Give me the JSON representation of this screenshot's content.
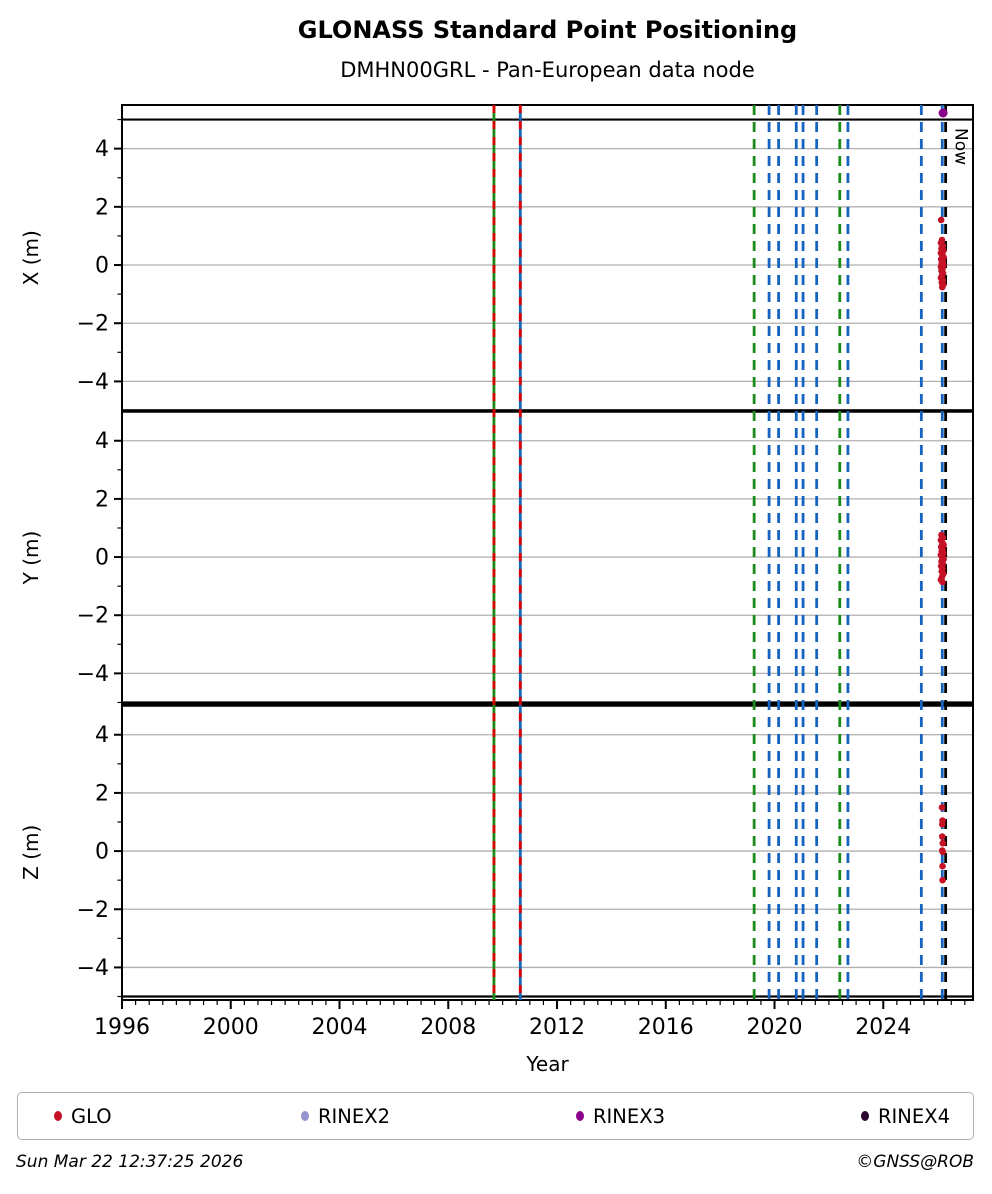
{
  "header": {
    "title": "GLONASS Standard Point Positioning",
    "subtitle": "DMHN00GRL - Pan-European data node"
  },
  "footer": {
    "timestamp": "Sun Mar 22 12:37:25 2026",
    "copyright": "©GNSS@ROB"
  },
  "legend": {
    "items": [
      {
        "label": "GLO",
        "color": "#c51225"
      },
      {
        "label": "RINEX2",
        "color": "#9793ce"
      },
      {
        "label": "RINEX3",
        "color": "#8b008b"
      },
      {
        "label": "RINEX4",
        "color": "#2d072d"
      }
    ]
  },
  "chart_data": {
    "type": "scatter",
    "title": "GLONASS Standard Point Positioning",
    "subtitle": "DMHN00GRL - Pan-European data node",
    "xlabel": "Year",
    "grid": "horizontal-only",
    "grid_color": "#b0b0b0",
    "point_color": "#c51225",
    "x_axis": {
      "lim": [
        1996,
        2027.3
      ],
      "major_ticks": [
        1996,
        2000,
        2004,
        2008,
        2012,
        2016,
        2020,
        2024
      ],
      "minor_step": 0.5
    },
    "now": {
      "year": 2026.22,
      "label": "Now",
      "color": "#000000"
    },
    "threshold_lines": [
      5,
      -5
    ],
    "event_lines": [
      {
        "year": 2009.68,
        "style": "solid",
        "color": "#1a8a1a",
        "overlay": "#dd0000"
      },
      {
        "year": 2010.65,
        "style": "solid",
        "color": "#1565c0",
        "overlay": "#dd0000"
      },
      {
        "year": 2019.25,
        "style": "dashed",
        "color": "#1a8a1a"
      },
      {
        "year": 2019.8,
        "style": "dashed",
        "color": "#1565c0"
      },
      {
        "year": 2020.15,
        "style": "dashed",
        "color": "#1565c0"
      },
      {
        "year": 2020.8,
        "style": "dashed",
        "color": "#1565c0"
      },
      {
        "year": 2021.05,
        "style": "dashed",
        "color": "#1565c0"
      },
      {
        "year": 2021.55,
        "style": "dashed",
        "color": "#1565c0"
      },
      {
        "year": 2022.4,
        "style": "dashed",
        "color": "#1a8a1a"
      },
      {
        "year": 2022.7,
        "style": "dashed",
        "color": "#1565c0"
      },
      {
        "year": 2025.4,
        "style": "dashed",
        "color": "#1565c0"
      },
      {
        "year": 2026.17,
        "style": "dashed",
        "color": "#1565c0"
      }
    ],
    "panels": [
      {
        "ylabel": "X (m)",
        "yticks": [
          4,
          2,
          0,
          -2,
          -4
        ],
        "ylim": [
          -5.0,
          5.5
        ],
        "series": "GLO",
        "points_years": [
          2026.13,
          2026.16,
          2026.12,
          2026.19,
          2026.14,
          2026.21,
          2026.12,
          2026.17,
          2026.22,
          2026.13,
          2026.19,
          2026.15,
          2026.21,
          2026.12,
          2026.18,
          2026.14,
          2026.2,
          2026.16,
          2026.12,
          2026.19,
          2026.15,
          2026.21,
          2026.17
        ],
        "points_values": [
          1.55,
          0.86,
          0.76,
          0.66,
          0.57,
          0.49,
          0.41,
          0.34,
          0.27,
          0.2,
          0.13,
          0.06,
          0.0,
          -0.06,
          -0.13,
          -0.2,
          -0.28,
          -0.36,
          -0.44,
          -0.52,
          -0.6,
          -0.68,
          -0.76
        ],
        "availability_markers": [
          {
            "year": 2026.2,
            "format": "RINEX3",
            "color": "#8b008b"
          }
        ]
      },
      {
        "ylabel": "Y (m)",
        "yticks": [
          4,
          2,
          0,
          -2,
          -4
        ],
        "ylim": [
          -5.07,
          5.04
        ],
        "series": "GLO",
        "points_years": [
          2026.14,
          2026.19,
          2026.12,
          2026.17,
          2026.22,
          2026.13,
          2026.18,
          2026.15,
          2026.21,
          2026.12,
          2026.17,
          2026.22,
          2026.14,
          2026.19,
          2026.13,
          2026.18,
          2026.15,
          2026.21,
          2026.16,
          2026.12,
          2026.18
        ],
        "points_values": [
          0.76,
          0.67,
          0.58,
          0.5,
          0.42,
          0.35,
          0.28,
          0.21,
          0.14,
          0.07,
          0.0,
          -0.07,
          -0.15,
          -0.23,
          -0.31,
          -0.4,
          -0.49,
          -0.58,
          -0.68,
          -0.78,
          -0.86
        ],
        "availability_markers": []
      },
      {
        "ylabel": "Z (m)",
        "yticks": [
          4,
          2,
          0,
          -2,
          -4
        ],
        "ylim": [
          -5.12,
          5.04
        ],
        "series": "GLO",
        "points_years": [
          2026.16,
          2026.18,
          2026.17,
          2026.17,
          2026.19,
          2026.17,
          2026.19,
          2026.18,
          2026.18
        ],
        "points_values": [
          1.5,
          1.05,
          0.92,
          0.5,
          0.27,
          0.02,
          -0.03,
          -0.52,
          -1.0
        ],
        "availability_markers": []
      }
    ]
  }
}
